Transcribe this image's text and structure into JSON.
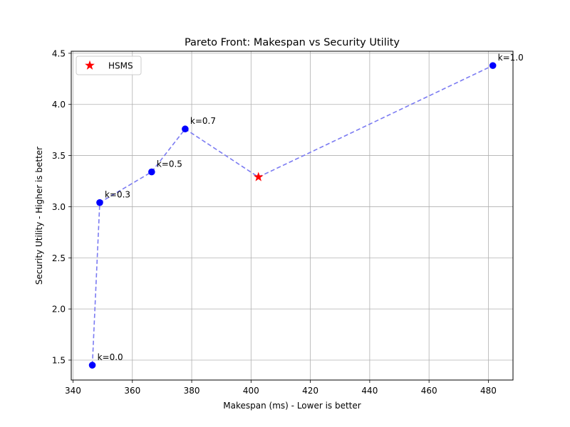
{
  "chart_data": {
    "type": "scatter",
    "title": "Pareto Front: Makespan vs Security Utility",
    "xlabel": "Makespan (ms) - Lower is better",
    "ylabel": "Security Utility - Higher is better",
    "xlim": [
      339.4,
      488.3
    ],
    "ylim": [
      1.305,
      4.52
    ],
    "xticks": [
      340,
      360,
      380,
      400,
      420,
      440,
      460,
      480
    ],
    "yticks": [
      1.5,
      2.0,
      2.5,
      3.0,
      3.5,
      4.0,
      4.5
    ],
    "grid": true,
    "legend": {
      "placement": "top-left",
      "entries": [
        "HSMS"
      ]
    },
    "series": [
      {
        "points": [
          {
            "x": 346.5,
            "y": 1.45,
            "label": "k=0.0"
          },
          {
            "x": 349.0,
            "y": 3.04,
            "label": "k=0.3"
          },
          {
            "x": 366.5,
            "y": 3.34,
            "label": "k=0.5"
          },
          {
            "x": 377.8,
            "y": 3.76,
            "label": "k=0.7"
          },
          {
            "x": 481.5,
            "y": 4.38,
            "label": "k=1.0"
          }
        ],
        "color": "#0000ff",
        "line_color": "#7b7bf2"
      },
      {
        "name": "HSMS",
        "points": [
          {
            "x": 402.5,
            "y": 3.29
          }
        ],
        "color": "#ff0000"
      }
    ]
  }
}
